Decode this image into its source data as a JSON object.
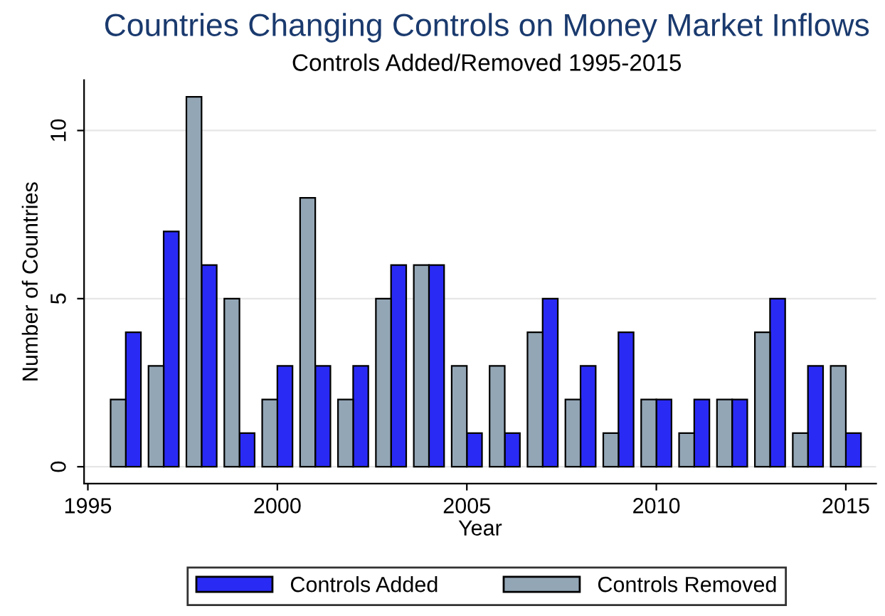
{
  "chart_data": {
    "type": "bar",
    "title": "Countries Changing Controls on Money Market Inflows",
    "subtitle": "Controls Added/Removed 1995-2015",
    "xlabel": "Year",
    "ylabel": "Number of Countries",
    "x": [
      1996,
      1997,
      1998,
      1999,
      2000,
      2001,
      2002,
      2003,
      2004,
      2005,
      2006,
      2007,
      2008,
      2009,
      2010,
      2011,
      2012,
      2013,
      2014,
      2015
    ],
    "series": [
      {
        "name": "Controls Added",
        "color": "#2a2af5",
        "values": [
          4,
          7,
          6,
          1,
          3,
          3,
          3,
          6,
          6,
          1,
          1,
          5,
          3,
          4,
          2,
          2,
          2,
          5,
          3,
          1
        ]
      },
      {
        "name": "Controls Removed",
        "color": "#93a6b6",
        "values": [
          2,
          3,
          11,
          5,
          2,
          8,
          2,
          5,
          6,
          3,
          3,
          4,
          2,
          1,
          2,
          1,
          2,
          4,
          1,
          3
        ]
      }
    ],
    "xlim": [
      1994.9,
      2015.8
    ],
    "xticks": [
      1995,
      2000,
      2005,
      2010,
      2015
    ],
    "ylim": [
      -0.5,
      11.5
    ],
    "yticks": [
      0,
      5,
      10
    ],
    "grid": "y",
    "legend": "bottom"
  }
}
